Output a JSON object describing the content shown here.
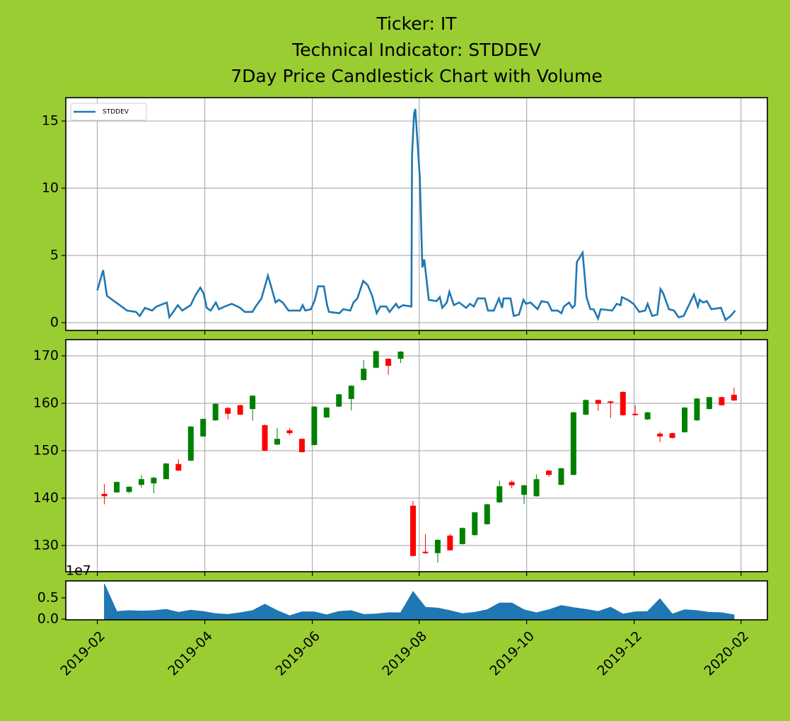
{
  "chart_data": [
    {
      "type": "line",
      "title": [
        "Ticker: IT",
        "Technical Indicator: STDDEV",
        "7Day Price Candlestick Chart with Volume"
      ],
      "series": [
        {
          "name": "STDDEV",
          "color": "#1f77b4",
          "x": [
            2019.083,
            2019.092,
            2019.098,
            2019.109,
            2019.118,
            2019.129,
            2019.143,
            2019.149,
            2019.157,
            2019.168,
            2019.175,
            2019.191,
            2019.195,
            2019.201,
            2019.208,
            2019.215,
            2019.228,
            2019.235,
            2019.243,
            2019.248,
            2019.253,
            2019.259,
            2019.267,
            2019.272,
            2019.281,
            2019.292,
            2019.305,
            2019.312,
            2019.324,
            2019.329,
            2019.338,
            2019.348,
            2019.353,
            2019.36,
            2019.365,
            2019.371,
            2019.38,
            2019.398,
            2019.402,
            2019.406,
            2019.415,
            2019.421,
            2019.426,
            2019.435,
            2019.44,
            2019.443,
            2019.459,
            2019.465,
            2019.476,
            2019.481,
            2019.487,
            2019.496,
            2019.503,
            2019.51,
            2019.517,
            2019.523,
            2019.532,
            2019.537,
            2019.547,
            2019.551,
            2019.558,
            2019.571,
            2019.572,
            2019.575,
            2019.577,
            2019.584,
            2019.588,
            2019.591,
            2019.598,
            2019.61,
            2019.615,
            2019.619,
            2019.626,
            2019.63,
            2019.637,
            2019.645,
            2019.656,
            2019.662,
            2019.668,
            2019.674,
            2019.685,
            2019.69,
            2019.699,
            2019.707,
            2019.712,
            2019.714,
            2019.725,
            2019.73,
            2019.738,
            2019.745,
            2019.749,
            2019.756,
            2019.767,
            2019.773,
            2019.783,
            2019.789,
            2019.798,
            2019.804,
            2019.808,
            2019.816,
            2019.821,
            2019.825,
            2019.828,
            2019.837,
            2019.843,
            2019.849,
            2019.854,
            2019.861,
            2019.865,
            2019.883,
            2019.89,
            2019.896,
            2019.898,
            2019.907,
            2019.916,
            2019.925,
            2019.934,
            2019.938,
            2019.945,
            2019.953,
            2019.958,
            2019.962,
            2019.971,
            2019.979,
            2019.986,
            2019.994,
            2020.002,
            2020.01,
            2020.016,
            2020.019,
            2020.024,
            2020.03,
            2020.037,
            2020.052,
            2020.059,
            2020.067,
            2020.074
          ],
          "values": [
            2.4,
            3.9,
            2.0,
            1.6,
            1.3,
            0.9,
            0.8,
            0.5,
            1.1,
            0.9,
            1.2,
            1.5,
            0.4,
            0.8,
            1.3,
            0.9,
            1.3,
            2.0,
            2.6,
            2.2,
            1.1,
            0.9,
            1.5,
            1.0,
            1.2,
            1.4,
            1.1,
            0.8,
            0.8,
            1.2,
            1.8,
            3.5,
            2.7,
            1.5,
            1.7,
            1.5,
            0.9,
            0.9,
            1.3,
            0.9,
            1.0,
            1.7,
            2.7,
            2.7,
            1.3,
            0.8,
            0.7,
            1.0,
            0.9,
            1.5,
            1.8,
            3.1,
            2.8,
            2.0,
            0.7,
            1.2,
            1.2,
            0.8,
            1.4,
            1.1,
            1.3,
            1.2,
            12.5,
            15.5,
            15.9,
            10.8,
            4.1,
            4.7,
            1.7,
            1.6,
            1.9,
            1.1,
            1.5,
            2.3,
            1.3,
            1.5,
            1.1,
            1.4,
            1.2,
            1.8,
            1.8,
            0.9,
            0.9,
            1.8,
            1.1,
            1.8,
            1.8,
            0.5,
            0.6,
            1.7,
            1.4,
            1.5,
            1.0,
            1.6,
            1.5,
            0.9,
            0.9,
            0.7,
            1.2,
            1.5,
            1.1,
            1.3,
            4.5,
            5.2,
            1.9,
            1.0,
            1.0,
            0.3,
            1.0,
            0.9,
            1.4,
            1.3,
            1.9,
            1.7,
            1.4,
            0.8,
            0.9,
            1.4,
            0.5,
            0.6,
            2.5,
            2.2,
            1.0,
            0.9,
            0.4,
            0.5,
            1.3,
            2.1,
            1.2,
            1.7,
            1.5,
            1.6,
            1.0,
            1.1,
            0.2,
            0.5,
            0.9
          ]
        }
      ],
      "ylim": [
        -0.58,
        16.74
      ],
      "yticks": [
        0,
        5,
        10,
        15
      ],
      "grid": true,
      "legend": "upper left"
    },
    {
      "type": "candlestick",
      "x": [
        2019.094,
        2019.1132,
        2019.1324,
        2019.1515,
        2019.1707,
        2019.1899,
        2019.2091,
        2019.2283,
        2019.2474,
        2019.2666,
        2019.2858,
        2019.305,
        2019.3242,
        2019.3433,
        2019.3625,
        2019.3817,
        2019.4009,
        2019.4201,
        2019.4392,
        2019.4584,
        2019.4776,
        2019.4968,
        2019.516,
        2019.5351,
        2019.5543,
        2019.5735,
        2019.5927,
        2019.6119,
        2019.631,
        2019.6502,
        2019.6694,
        2019.6886,
        2019.7078,
        2019.7269,
        2019.7461,
        2019.7653,
        2019.7845,
        2019.8037,
        2019.8228,
        2019.842,
        2019.8612,
        2019.8804,
        2019.8996,
        2019.9187,
        2019.9379,
        2019.9571,
        2019.9763,
        2019.9955,
        2020.0146,
        2020.0338,
        2020.053,
        2020.0722
      ],
      "open": [
        140.9,
        141.2,
        141.3,
        142.8,
        143.1,
        144.0,
        147.2,
        147.9,
        153.0,
        156.4,
        159.0,
        159.6,
        158.8,
        155.4,
        151.3,
        154.3,
        152.5,
        151.2,
        157.0,
        159.3,
        160.9,
        164.9,
        167.5,
        169.4,
        169.4,
        138.4,
        128.7,
        128.4,
        132.1,
        130.3,
        132.2,
        134.5,
        139.1,
        143.4,
        140.7,
        140.4,
        145.8,
        142.8,
        144.9,
        157.6,
        160.7,
        160.4,
        162.4,
        157.8,
        156.6,
        153.6,
        153.7,
        153.9,
        156.4,
        158.8,
        161.3,
        161.8
      ],
      "high": [
        143.0,
        143.5,
        142.5,
        144.9,
        144.5,
        147.4,
        148.2,
        155.2,
        156.8,
        160.0,
        159.2,
        159.7,
        161.7,
        155.5,
        154.8,
        154.8,
        152.6,
        159.4,
        159.2,
        162.0,
        163.8,
        169.1,
        171.1,
        169.5,
        171.0,
        139.4,
        132.4,
        131.3,
        132.5,
        133.8,
        137.1,
        138.8,
        143.7,
        143.7,
        142.8,
        145.0,
        145.9,
        146.4,
        158.2,
        160.8,
        160.8,
        160.5,
        162.5,
        159.6,
        158.2,
        154.0,
        153.8,
        159.2,
        161.1,
        161.4,
        161.4,
        163.3
      ],
      "low": [
        138.7,
        141.2,
        141.0,
        142.2,
        141.0,
        144.0,
        145.7,
        147.8,
        153.0,
        156.3,
        156.6,
        157.5,
        156.3,
        149.9,
        151.2,
        153.3,
        149.6,
        151.1,
        157.0,
        159.2,
        158.5,
        164.8,
        167.4,
        166.0,
        168.5,
        127.7,
        128.2,
        126.4,
        128.9,
        130.2,
        132.1,
        134.4,
        139.0,
        142.1,
        138.8,
        140.3,
        144.5,
        142.7,
        144.8,
        157.5,
        158.4,
        156.9,
        157.4,
        157.4,
        156.5,
        151.8,
        152.6,
        153.8,
        156.3,
        158.7,
        159.5,
        160.5
      ],
      "close": [
        140.4,
        143.4,
        142.4,
        144.0,
        144.3,
        147.3,
        145.8,
        155.1,
        156.7,
        159.9,
        157.8,
        157.6,
        161.6,
        150.0,
        152.5,
        153.7,
        149.7,
        159.3,
        159.1,
        161.9,
        163.7,
        167.3,
        171.0,
        167.9,
        170.9,
        127.8,
        128.4,
        131.2,
        129.0,
        133.7,
        137.0,
        138.7,
        142.5,
        142.7,
        142.7,
        144.0,
        144.9,
        146.3,
        158.1,
        160.7,
        159.9,
        160.1,
        157.5,
        157.5,
        158.1,
        153.0,
        152.7,
        159.1,
        161.0,
        161.3,
        159.6,
        160.6
      ],
      "up_color": "green",
      "down_color": "red",
      "ylim": [
        124.48,
        173.43
      ],
      "yticks": [
        130,
        140,
        150,
        160,
        170
      ],
      "grid": true
    },
    {
      "type": "area",
      "x": [
        2019.094,
        2019.1132,
        2019.1324,
        2019.1515,
        2019.1707,
        2019.1899,
        2019.2091,
        2019.2283,
        2019.2474,
        2019.2666,
        2019.2858,
        2019.305,
        2019.3242,
        2019.3433,
        2019.3625,
        2019.3817,
        2019.4009,
        2019.4201,
        2019.4392,
        2019.4584,
        2019.4776,
        2019.4968,
        2019.516,
        2019.5351,
        2019.5543,
        2019.5735,
        2019.5927,
        2019.6119,
        2019.631,
        2019.6502,
        2019.6694,
        2019.6886,
        2019.7078,
        2019.7269,
        2019.7461,
        2019.7653,
        2019.7845,
        2019.8037,
        2019.8228,
        2019.842,
        2019.8612,
        2019.8804,
        2019.8996,
        2019.9187,
        2019.9379,
        2019.9571,
        2019.9763,
        2019.9955,
        2020.0146,
        2020.0338,
        2020.053,
        2020.0722
      ],
      "values": [
        0.83,
        0.18,
        0.2,
        0.19,
        0.2,
        0.23,
        0.16,
        0.21,
        0.18,
        0.13,
        0.11,
        0.15,
        0.2,
        0.35,
        0.2,
        0.08,
        0.17,
        0.17,
        0.1,
        0.18,
        0.2,
        0.11,
        0.12,
        0.15,
        0.15,
        0.65,
        0.28,
        0.26,
        0.2,
        0.13,
        0.16,
        0.22,
        0.38,
        0.38,
        0.22,
        0.15,
        0.22,
        0.32,
        0.27,
        0.23,
        0.18,
        0.28,
        0.12,
        0.17,
        0.18,
        0.48,
        0.12,
        0.22,
        0.2,
        0.16,
        0.15,
        0.1
      ],
      "color": "#1f77b4",
      "ylim": [
        -0.0167,
        0.9
      ],
      "yticks": [
        {
          "value": 0,
          "label": "0.0"
        },
        0.5
      ],
      "offset_label": "1e7",
      "xlim": [
        2019.034,
        2020.124
      ],
      "xticks": [
        {
          "value": 2019.083,
          "label": "2019-02"
        },
        {
          "value": 2019.25,
          "label": "2019-04"
        },
        {
          "value": 2019.417,
          "label": "2019-06"
        },
        {
          "value": 2019.583,
          "label": "2019-08"
        },
        {
          "value": 2019.75,
          "label": "2019-10"
        },
        {
          "value": 2019.917,
          "label": "2019-12"
        },
        {
          "value": 2020.083,
          "label": "2020-02"
        }
      ],
      "grid": false
    }
  ]
}
